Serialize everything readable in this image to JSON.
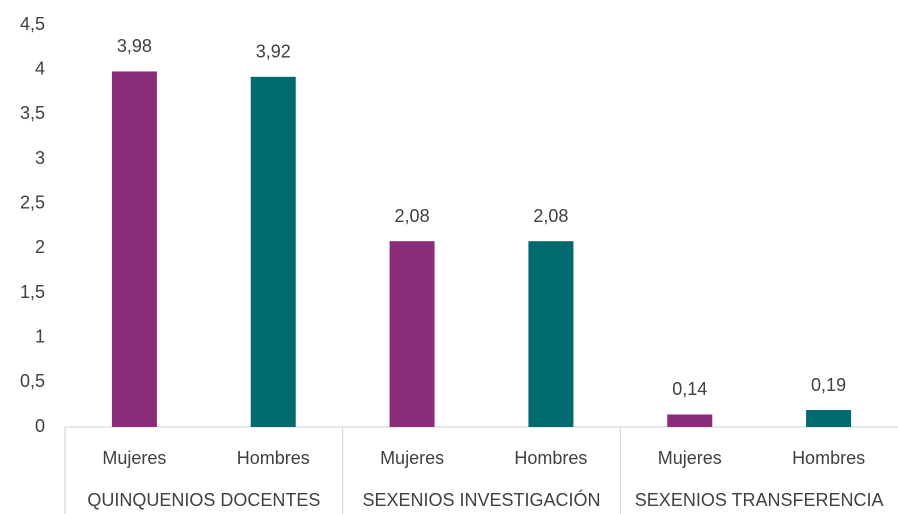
{
  "chart_data": {
    "type": "bar",
    "categories": [
      "Mujeres",
      "Hombres",
      "Mujeres",
      "Hombres",
      "Mujeres",
      "Hombres"
    ],
    "groups": [
      "QUINQUENIOS DOCENTES",
      "SEXENIOS INVESTIGACIÓN",
      "SEXENIOS TRANSFERENCIA"
    ],
    "values": [
      3.98,
      3.92,
      2.08,
      2.08,
      0.14,
      0.19
    ],
    "value_labels": [
      "3,98",
      "3,92",
      "2,08",
      "2,08",
      "0,14",
      "0,19"
    ],
    "colors": [
      "#8b2c7a",
      "#006b6f",
      "#8b2c7a",
      "#006b6f",
      "#8b2c7a",
      "#006b6f"
    ],
    "ylim": [
      0,
      4.5
    ],
    "yticks": [
      0,
      {
        "value": 0.5,
        "label": "0,5"
      },
      1,
      {
        "value": 1.5,
        "label": "1,5"
      },
      2,
      {
        "value": 2.5,
        "label": "2,5"
      },
      3,
      {
        "value": 3.5,
        "label": "3,5"
      },
      4,
      {
        "value": 4.5,
        "label": "4,5"
      }
    ],
    "grid": false
  }
}
